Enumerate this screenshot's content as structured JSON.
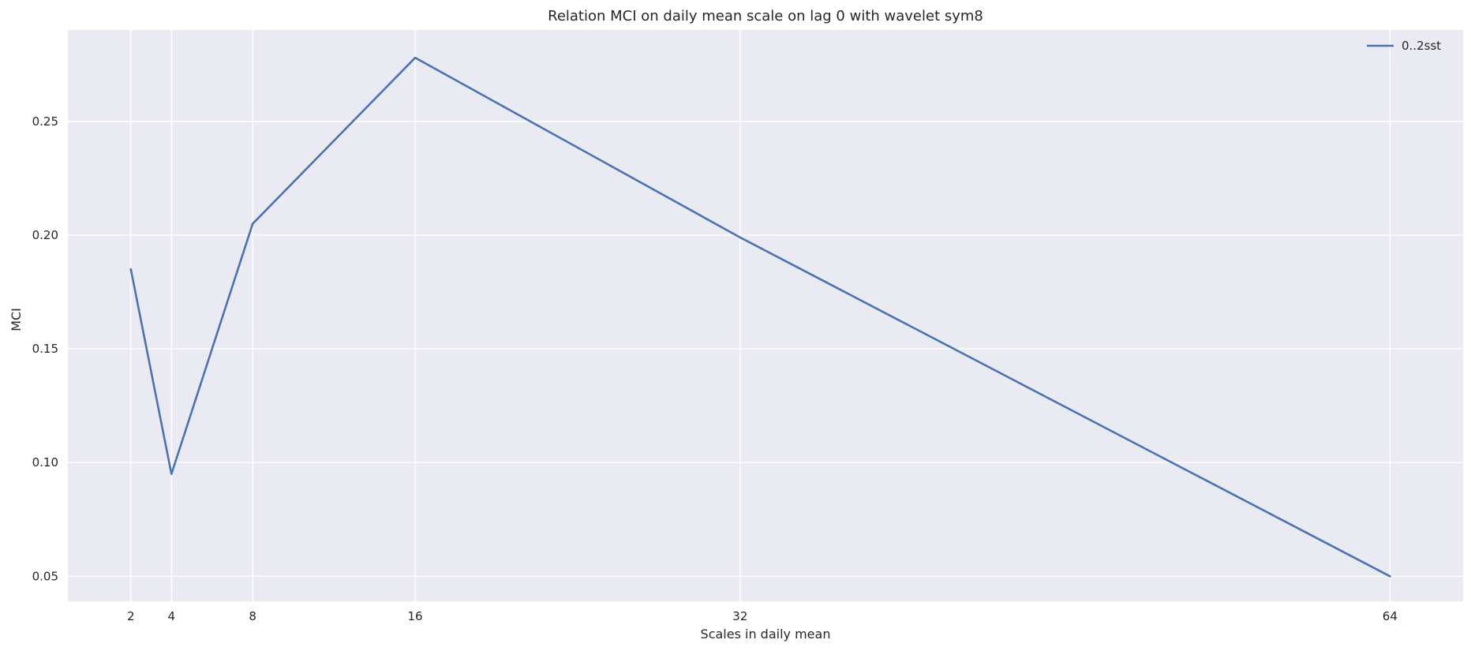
{
  "chart_data": {
    "type": "line",
    "title": "Relation MCI on daily mean scale on lag 0 with wavelet sym8",
    "xlabel": "Scales in daily mean",
    "ylabel": "MCI",
    "x": [
      2,
      4,
      8,
      16,
      32,
      64
    ],
    "x_tick_labels": [
      "2",
      "4",
      "8",
      "16",
      "32",
      "64"
    ],
    "y_ticks": [
      0.05,
      0.1,
      0.15,
      0.2,
      0.25
    ],
    "y_tick_labels": [
      "0.05",
      "0.10",
      "0.15",
      "0.20",
      "0.25"
    ],
    "xlim": [
      -1.1,
      67.6
    ],
    "ylim": [
      0.039,
      0.2902
    ],
    "grid": true,
    "legend_position": "top-right",
    "series": [
      {
        "name": "0..2sst",
        "color": "#4c72b0",
        "values": [
          0.185,
          0.095,
          0.205,
          0.278,
          0.199,
          0.05
        ]
      }
    ],
    "background_color": "#eaeaf2",
    "grid_color": "#ffffff"
  }
}
